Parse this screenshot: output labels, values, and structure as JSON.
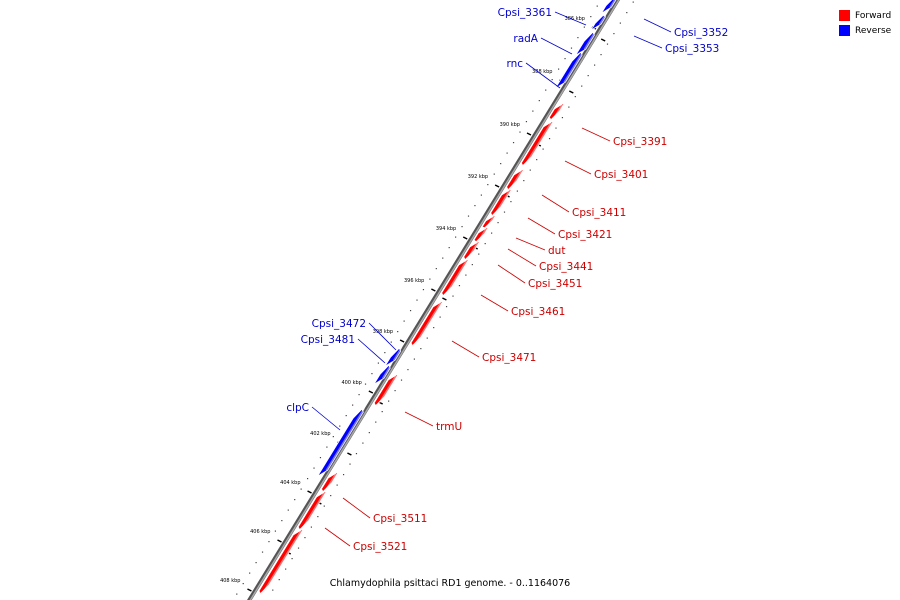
{
  "colors": {
    "forward": "#ff0000",
    "reverse": "#0000ff",
    "backbone": "#888888"
  },
  "legend": [
    {
      "label": "Forward",
      "strand": "forward"
    },
    {
      "label": "Reverse",
      "strand": "reverse"
    }
  ],
  "caption": "Chlamydophila psittaci RD1 genome. - 0..1164076",
  "ticks": [
    {
      "label": "386 kbp"
    },
    {
      "label": "388 kbp"
    },
    {
      "label": "390 kbp"
    },
    {
      "label": "392 kbp"
    },
    {
      "label": "394 kbp"
    },
    {
      "label": "396 kbp"
    },
    {
      "label": "398 kbp"
    },
    {
      "label": "400 kbp"
    },
    {
      "label": "402 kbp"
    },
    {
      "label": "404 kbp"
    },
    {
      "label": "406 kbp"
    },
    {
      "label": "408 kbp"
    }
  ],
  "genes": [
    {
      "name": "Cpsi_3361",
      "strand": "reverse"
    },
    {
      "name": "radA",
      "strand": "reverse"
    },
    {
      "name": "rnc",
      "strand": "reverse"
    },
    {
      "name": "Cpsi_3352",
      "strand": "reverse"
    },
    {
      "name": "Cpsi_3353",
      "strand": "reverse"
    },
    {
      "name": "Cpsi_3391",
      "strand": "forward"
    },
    {
      "name": "Cpsi_3401",
      "strand": "forward"
    },
    {
      "name": "Cpsi_3411",
      "strand": "forward"
    },
    {
      "name": "Cpsi_3421",
      "strand": "forward"
    },
    {
      "name": "dut",
      "strand": "forward"
    },
    {
      "name": "Cpsi_3441",
      "strand": "forward"
    },
    {
      "name": "Cpsi_3451",
      "strand": "forward"
    },
    {
      "name": "Cpsi_3461",
      "strand": "forward"
    },
    {
      "name": "Cpsi_3471",
      "strand": "forward"
    },
    {
      "name": "Cpsi_3472",
      "strand": "reverse"
    },
    {
      "name": "Cpsi_3481",
      "strand": "reverse"
    },
    {
      "name": "clpC",
      "strand": "reverse"
    },
    {
      "name": "trmU",
      "strand": "forward"
    },
    {
      "name": "Cpsi_3511",
      "strand": "forward"
    },
    {
      "name": "Cpsi_3521",
      "strand": "forward"
    }
  ]
}
